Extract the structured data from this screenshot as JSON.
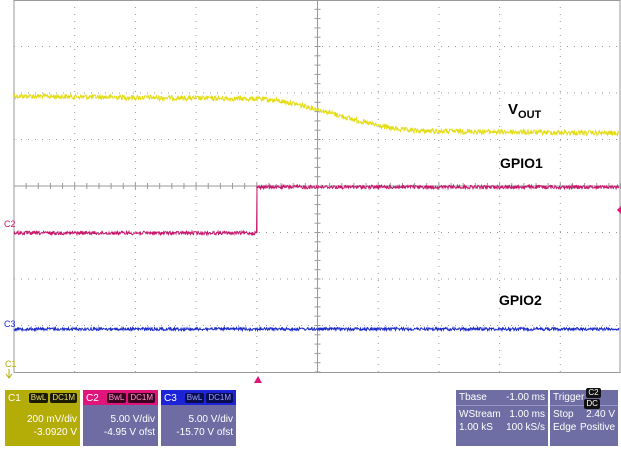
{
  "trace_labels": {
    "vout_main": "V",
    "vout_sub": "OUT",
    "gpio1": "GPIO1",
    "gpio2": "GPIO2"
  },
  "channel_markers": {
    "c1": "C1",
    "c2": "C2",
    "c3": "C3"
  },
  "colors": {
    "ch1": "#e3dc16",
    "ch2": "#c8186c",
    "ch3": "#1e2ccc",
    "grid": "#9a9a9a",
    "trigger_marker": "#e0157c"
  },
  "channels": [
    {
      "name": "C1",
      "tags": [
        "BwL",
        "DC1M"
      ],
      "scale": "200 mV/div",
      "offset": "-3.0920 V"
    },
    {
      "name": "C2",
      "tags": [
        "BwL",
        "DC1M"
      ],
      "scale": "5.00 V/div",
      "offset": "-4.95 V ofst"
    },
    {
      "name": "C3",
      "tags": [
        "BwL",
        "DC1M"
      ],
      "scale": "5.00 V/div",
      "offset": "-15.70 V ofst"
    }
  ],
  "timebase": {
    "title": "Tbase",
    "value": "-1.00 ms",
    "row1_left": "WStream",
    "row1_right": "1.00 ms",
    "row2_left": "1.00 kS",
    "row2_right": "100 kS/s"
  },
  "trigger": {
    "title": "Trigger",
    "tags": [
      "C2",
      "DC"
    ],
    "row1_left": "Stop",
    "row1_right": "2.40 V",
    "row2_left": "Edge",
    "row2_right": "Positive"
  }
}
